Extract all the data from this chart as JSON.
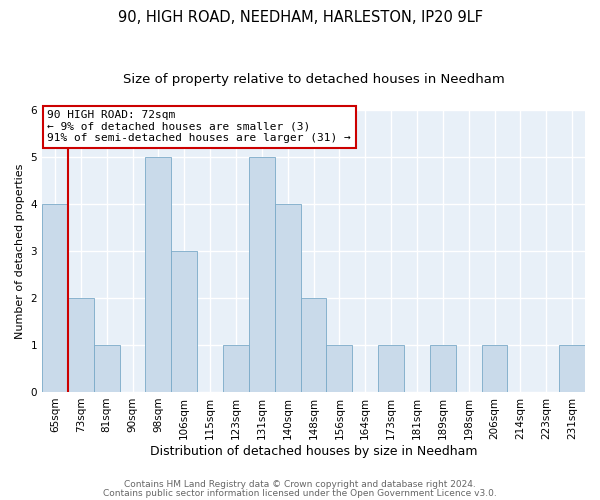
{
  "title1": "90, HIGH ROAD, NEEDHAM, HARLESTON, IP20 9LF",
  "title2": "Size of property relative to detached houses in Needham",
  "xlabel": "Distribution of detached houses by size in Needham",
  "ylabel": "Number of detached properties",
  "categories": [
    "65sqm",
    "73sqm",
    "81sqm",
    "90sqm",
    "98sqm",
    "106sqm",
    "115sqm",
    "123sqm",
    "131sqm",
    "140sqm",
    "148sqm",
    "156sqm",
    "164sqm",
    "173sqm",
    "181sqm",
    "189sqm",
    "198sqm",
    "206sqm",
    "214sqm",
    "223sqm",
    "231sqm"
  ],
  "values": [
    4,
    2,
    1,
    0,
    5,
    3,
    0,
    1,
    5,
    4,
    2,
    1,
    0,
    1,
    0,
    1,
    0,
    1,
    0,
    0,
    1
  ],
  "bar_color": "#c9daea",
  "bar_edge_color": "#7aaac8",
  "highlight_line_color": "#cc0000",
  "annotation_line1": "90 HIGH ROAD: 72sqm",
  "annotation_line2": "← 9% of detached houses are smaller (3)",
  "annotation_line3": "91% of semi-detached houses are larger (31) →",
  "annotation_box_edge_color": "#cc0000",
  "annotation_box_fill_color": "#ffffff",
  "ylim": [
    0,
    6
  ],
  "yticks": [
    0,
    1,
    2,
    3,
    4,
    5,
    6
  ],
  "footer1": "Contains HM Land Registry data © Crown copyright and database right 2024.",
  "footer2": "Contains public sector information licensed under the Open Government Licence v3.0.",
  "bg_color": "#ffffff",
  "plot_bg_color": "#e8f0f8",
  "grid_color": "#ffffff",
  "title1_fontsize": 10.5,
  "title2_fontsize": 9.5,
  "xlabel_fontsize": 9,
  "ylabel_fontsize": 8,
  "tick_fontsize": 7.5,
  "annotation_fontsize": 8,
  "footer_fontsize": 6.5
}
